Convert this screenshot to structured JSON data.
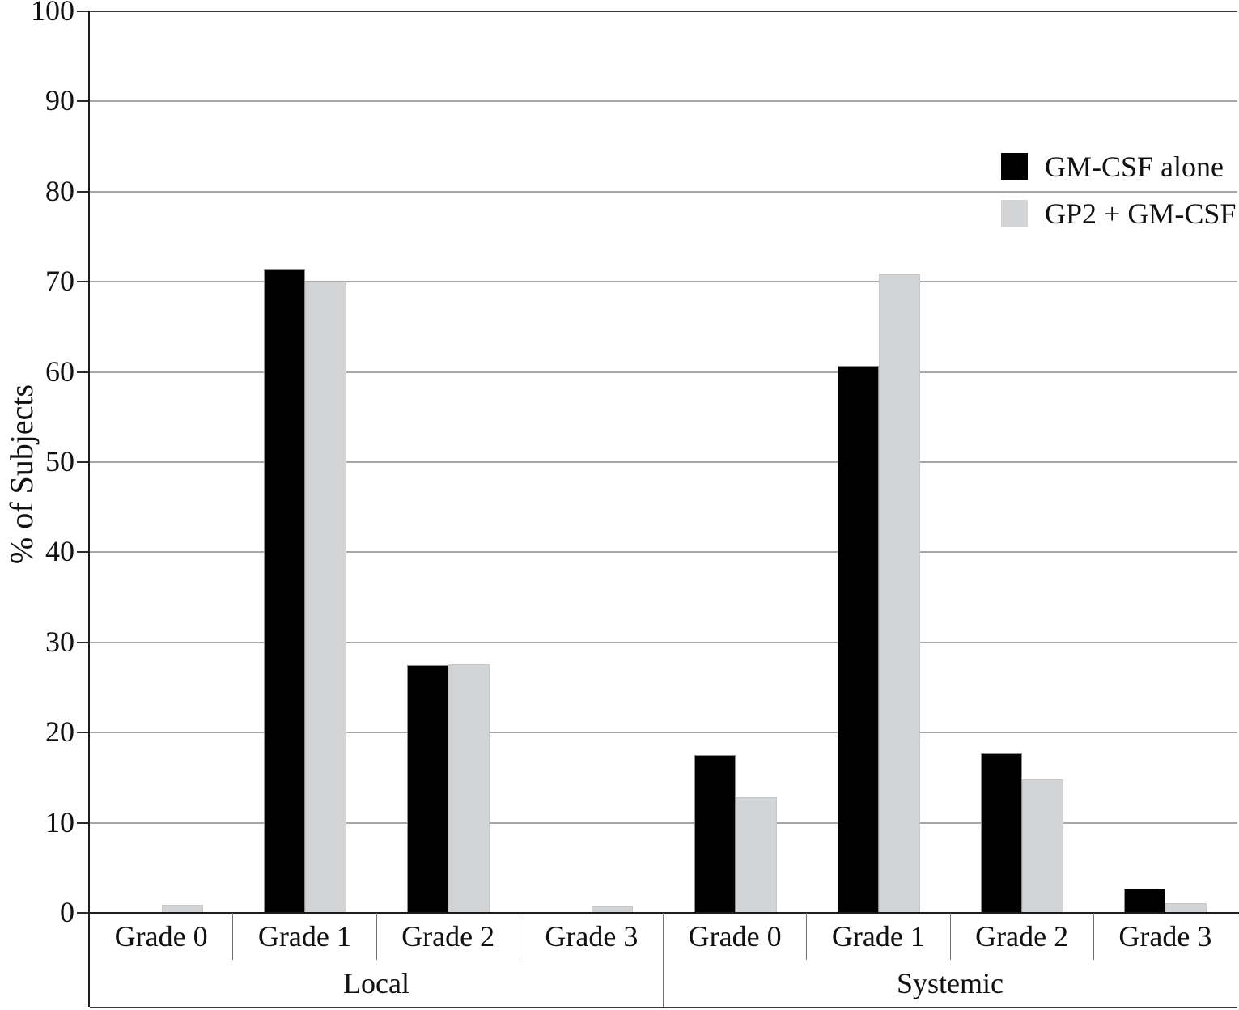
{
  "chart_data": {
    "type": "bar",
    "title": "",
    "ylabel": "% of Subjects",
    "xlabel": "",
    "ylim": [
      0,
      100
    ],
    "ytick_step": 10,
    "y_tick_labels": [
      "0",
      "10",
      "20",
      "30",
      "40",
      "50",
      "60",
      "70",
      "80",
      "90",
      "100"
    ],
    "grid": true,
    "legend_position": "upper-right-inside",
    "group_labels": [
      "Local",
      "Systemic"
    ],
    "categories": [
      "Grade 0",
      "Grade 1",
      "Grade 2",
      "Grade 3",
      "Grade 0",
      "Grade 1",
      "Grade 2",
      "Grade 3"
    ],
    "category_groups": [
      "Local",
      "Local",
      "Local",
      "Local",
      "Systemic",
      "Systemic",
      "Systemic",
      "Systemic"
    ],
    "series": [
      {
        "name": "GM-CSF alone",
        "color": "#000000",
        "values": [
          0,
          71.4,
          27.5,
          0,
          17.5,
          60.7,
          17.7,
          2.7
        ]
      },
      {
        "name": "GP2 + GM-CSF",
        "color": "#d3d3d3",
        "values": [
          0.9,
          70.0,
          27.6,
          0.7,
          12.8,
          70.8,
          14.8,
          1.1
        ]
      }
    ]
  },
  "colors": {
    "series1": "#000000",
    "series2": "#d3d3d3",
    "gridline": "#a8a8a8",
    "axis": "#1f1f1f",
    "background": "#ffffff"
  }
}
